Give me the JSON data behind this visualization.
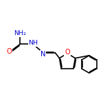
{
  "bg_color": "#ffffff",
  "atom_colors": {
    "C": "#000000",
    "N": "#0000cd",
    "O": "#ff0000",
    "H": "#000000"
  },
  "bond_color": "#000000",
  "bond_width": 1.2,
  "font_size_atoms": 7.0
}
